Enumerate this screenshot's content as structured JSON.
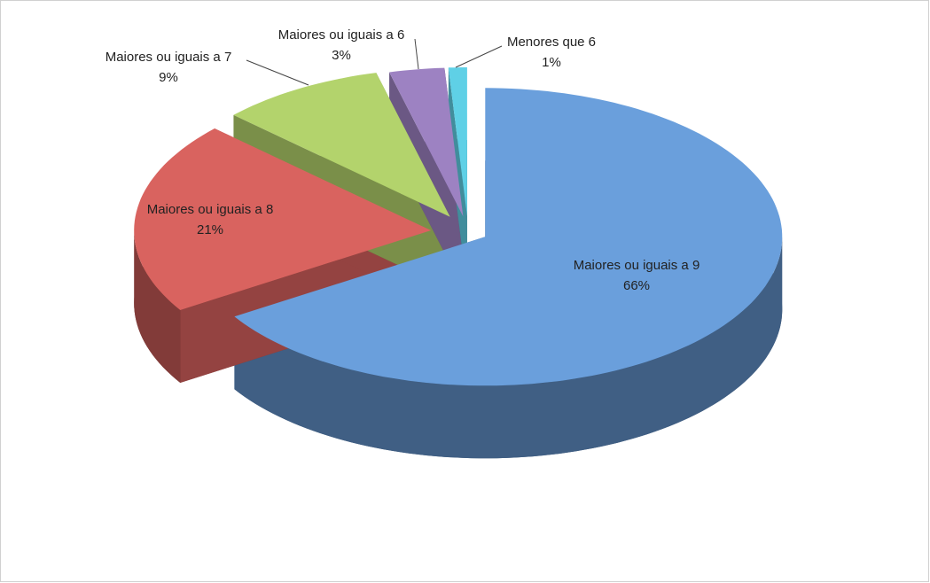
{
  "chart_data": {
    "type": "pie3d",
    "categories": [
      "Maiores ou iguais a 9",
      "Maiores ou iguais a 8",
      "Maiores ou iguais a 7",
      "Maiores ou iguais a 6",
      "Menores que 6"
    ],
    "values": [
      66,
      21,
      9,
      3,
      1
    ],
    "value_labels": [
      "66%",
      "21%",
      "9%",
      "3%",
      "1%"
    ],
    "colors": [
      "#6a9fdc",
      "#d9635f",
      "#b3d36c",
      "#9d82c2",
      "#5fd0e6"
    ]
  }
}
